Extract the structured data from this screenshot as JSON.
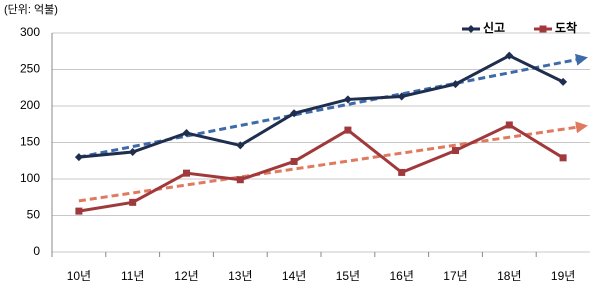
{
  "chart_data": {
    "type": "line",
    "unit_label": "(단위: 억불)",
    "categories": [
      "10년",
      "11년",
      "12년",
      "13년",
      "14년",
      "15년",
      "16년",
      "17년",
      "18년",
      "19년"
    ],
    "series": [
      {
        "name": "신고",
        "color": "#1f2d4e",
        "marker": "diamond",
        "values": [
          130,
          137,
          163,
          146,
          190,
          209,
          213,
          230,
          269,
          233
        ],
        "trend": [
          130,
          265
        ],
        "trend_color": "#3d6aa8"
      },
      {
        "name": "도착",
        "color": "#a0393b",
        "marker": "square",
        "values": [
          56,
          68,
          108,
          99,
          124,
          167,
          109,
          139,
          174,
          129
        ],
        "trend": [
          70,
          172
        ],
        "trend_color": "#e07a5f"
      }
    ],
    "ylim": [
      0,
      300
    ],
    "yticks": [
      0,
      50,
      100,
      150,
      200,
      250,
      300
    ],
    "grid": true
  }
}
